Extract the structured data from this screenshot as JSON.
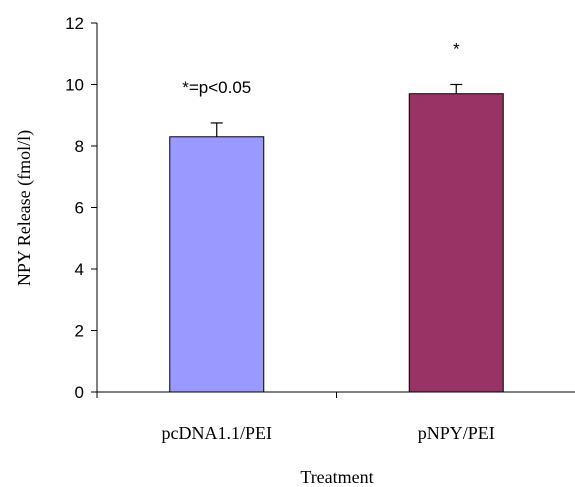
{
  "chart_data": {
    "type": "bar",
    "categories": [
      "pcDNA1.1/PEI",
      "pNPY/PEI"
    ],
    "values": [
      8.3,
      9.7
    ],
    "errors": [
      0.45,
      0.3
    ],
    "colors": [
      "#9999ff",
      "#993366"
    ],
    "xlabel": "Treatment",
    "ylabel": "NPY Release (fmol/l)",
    "ylim": [
      0,
      12
    ],
    "yticks": [
      "0",
      "2",
      "4",
      "6",
      "8",
      "10",
      "12"
    ],
    "grid": false,
    "annotations": [
      {
        "text": "*=p<0.05",
        "category": 0
      },
      {
        "text": "*",
        "category": 1
      }
    ]
  }
}
